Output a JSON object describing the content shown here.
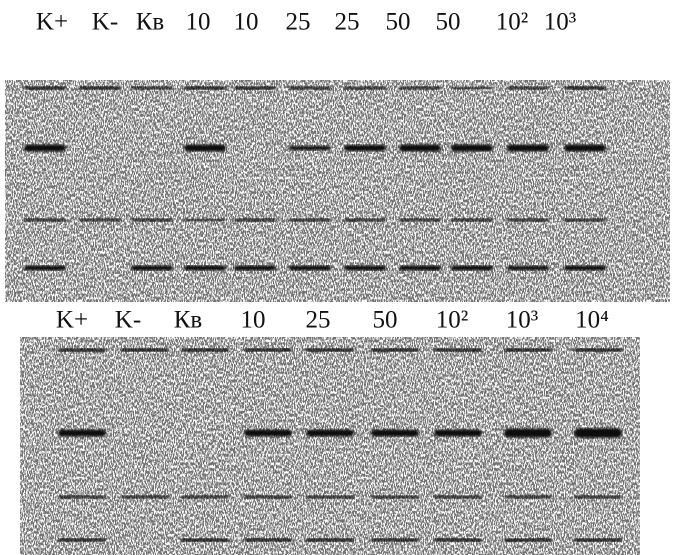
{
  "panels": [
    {
      "lanes": [
        "K+",
        "K-",
        "Кв",
        "10",
        "10",
        "25",
        "25",
        "50",
        "50",
        "10²",
        "10³"
      ]
    },
    {
      "lanes": [
        "K+",
        "K-",
        "Кв",
        "10",
        "25",
        "50",
        "10²",
        "10³",
        "10⁴"
      ]
    }
  ]
}
